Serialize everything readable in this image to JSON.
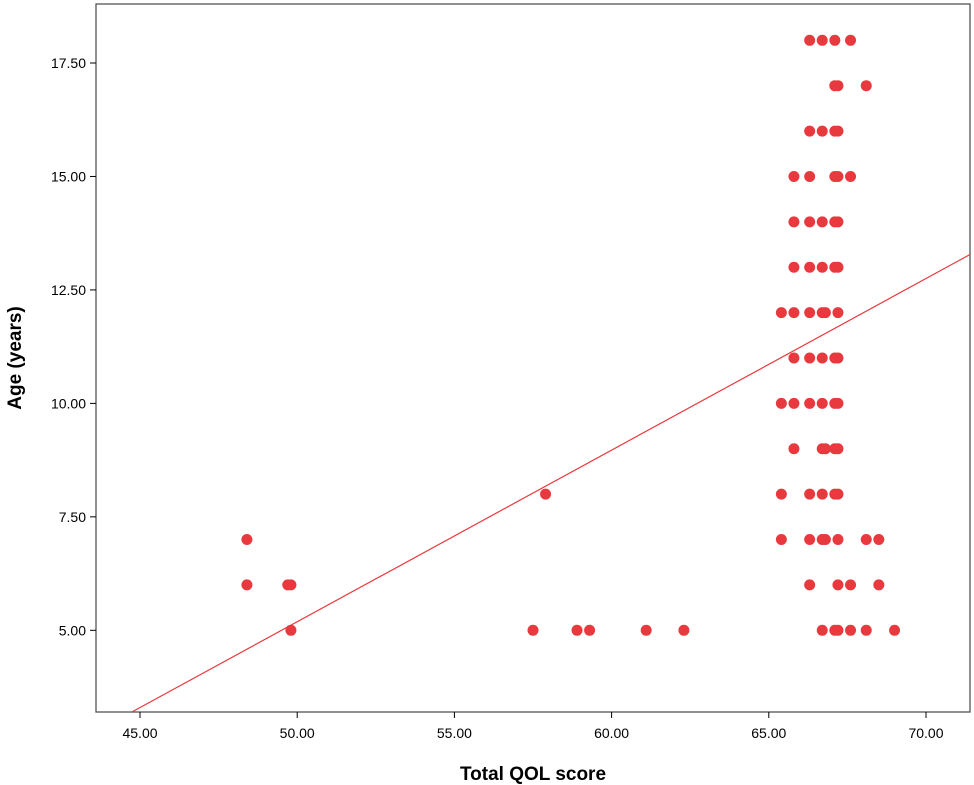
{
  "chart_data": {
    "type": "scatter",
    "title": "",
    "xlabel": "Total QOL score",
    "ylabel": "Age (years)",
    "xlim": [
      43.6,
      71.4
    ],
    "ylim": [
      3.2,
      18.8
    ],
    "x_ticks": [
      "45.00",
      "50.00",
      "55.00",
      "60.00",
      "65.00",
      "70.00"
    ],
    "y_ticks": [
      "5.00",
      "7.50",
      "10.00",
      "12.50",
      "15.00",
      "17.50"
    ],
    "grid": false,
    "legend": "none",
    "marker_color": "#e8393e",
    "fit_line": {
      "color": "#e8393e",
      "from": [
        44.74,
        3.2
      ],
      "to": [
        71.4,
        13.28
      ]
    },
    "points": [
      [
        48.4,
        7
      ],
      [
        48.4,
        6
      ],
      [
        49.7,
        6
      ],
      [
        49.8,
        6
      ],
      [
        49.8,
        5
      ],
      [
        57.5,
        5
      ],
      [
        57.9,
        8
      ],
      [
        58.9,
        5
      ],
      [
        59.3,
        5
      ],
      [
        61.1,
        5
      ],
      [
        62.3,
        5
      ],
      [
        66.3,
        18
      ],
      [
        66.7,
        18
      ],
      [
        67.1,
        18
      ],
      [
        67.6,
        18
      ],
      [
        67.1,
        17
      ],
      [
        67.2,
        17
      ],
      [
        68.1,
        17
      ],
      [
        66.3,
        16
      ],
      [
        66.7,
        16
      ],
      [
        67.1,
        16
      ],
      [
        67.2,
        16
      ],
      [
        65.8,
        15
      ],
      [
        66.3,
        15
      ],
      [
        67.1,
        15
      ],
      [
        67.2,
        15
      ],
      [
        67.6,
        15
      ],
      [
        65.8,
        14
      ],
      [
        66.3,
        14
      ],
      [
        66.7,
        14
      ],
      [
        67.1,
        14
      ],
      [
        67.2,
        14
      ],
      [
        65.8,
        13
      ],
      [
        66.3,
        13
      ],
      [
        66.7,
        13
      ],
      [
        67.1,
        13
      ],
      [
        67.2,
        13
      ],
      [
        65.4,
        12
      ],
      [
        65.8,
        12
      ],
      [
        66.3,
        12
      ],
      [
        66.7,
        12
      ],
      [
        66.8,
        12
      ],
      [
        67.2,
        12
      ],
      [
        65.8,
        11
      ],
      [
        66.3,
        11
      ],
      [
        66.7,
        11
      ],
      [
        67.1,
        11
      ],
      [
        67.2,
        11
      ],
      [
        65.4,
        10
      ],
      [
        65.8,
        10
      ],
      [
        66.3,
        10
      ],
      [
        66.7,
        10
      ],
      [
        67.1,
        10
      ],
      [
        67.2,
        10
      ],
      [
        65.8,
        9
      ],
      [
        66.7,
        9
      ],
      [
        66.8,
        9
      ],
      [
        67.1,
        9
      ],
      [
        67.2,
        9
      ],
      [
        65.4,
        8
      ],
      [
        66.3,
        8
      ],
      [
        66.7,
        8
      ],
      [
        67.1,
        8
      ],
      [
        67.2,
        8
      ],
      [
        65.4,
        7
      ],
      [
        66.3,
        7
      ],
      [
        66.7,
        7
      ],
      [
        66.8,
        7
      ],
      [
        67.2,
        7
      ],
      [
        68.1,
        7
      ],
      [
        68.5,
        7
      ],
      [
        66.3,
        6
      ],
      [
        67.2,
        6
      ],
      [
        67.6,
        6
      ],
      [
        68.5,
        6
      ],
      [
        66.7,
        5
      ],
      [
        67.1,
        5
      ],
      [
        67.2,
        5
      ],
      [
        67.6,
        5
      ],
      [
        68.1,
        5
      ],
      [
        69.0,
        5
      ]
    ]
  }
}
